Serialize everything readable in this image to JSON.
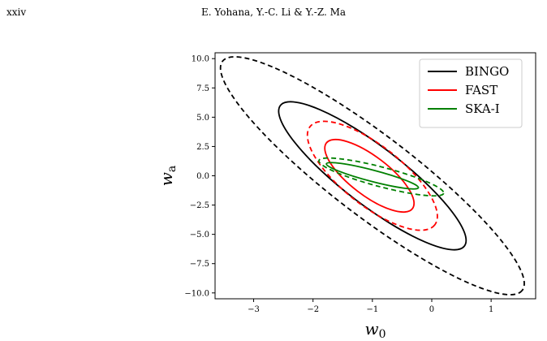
{
  "header": {
    "page_label": "xxiv",
    "authors": "E. Yohana, Y.-C. Li & Y.-Z. Ma"
  },
  "chart_data": {
    "type": "contour",
    "xlabel": "w",
    "xlabel_sub": "0",
    "ylabel": "w",
    "ylabel_sub": "a",
    "xlim": [
      -3.65,
      1.75
    ],
    "ylim": [
      -10.5,
      10.5
    ],
    "x_ticks": [
      -3,
      -2,
      -1,
      0,
      1
    ],
    "x_tick_labels": [
      "−3",
      "−2",
      "−1",
      "0",
      "1"
    ],
    "y_ticks": [
      10.0,
      7.5,
      5.0,
      2.5,
      0.0,
      -2.5,
      -5.0,
      -7.5,
      -10.0
    ],
    "y_tick_labels": [
      "10.0",
      "7.5",
      "5.0",
      "2.5",
      "0.0",
      "−2.5",
      "−5.0",
      "−7.5",
      "−10.0"
    ],
    "legend_position": "top-right",
    "series": [
      {
        "name": "BINGO",
        "color": "#000000",
        "contours": [
          {
            "level": "inner",
            "style": "solid",
            "center": [
              -1.0,
              0.0
            ],
            "end1": [
              -2.55,
              6.0
            ],
            "end2": [
              0.55,
              -6.0
            ],
            "half_width": 0.85
          },
          {
            "level": "outer",
            "style": "dashed",
            "center": [
              -1.0,
              0.0
            ],
            "end1": [
              -3.55,
              9.75
            ],
            "end2": [
              1.5,
              -9.8
            ],
            "half_width": 1.2
          }
        ]
      },
      {
        "name": "FAST",
        "color": "#ff0000",
        "contours": [
          {
            "level": "inner",
            "style": "solid",
            "center": [
              -1.05,
              0.0
            ],
            "end1": [
              -1.8,
              3.0
            ],
            "end2": [
              -0.35,
              -2.6
            ],
            "half_width": 0.55
          },
          {
            "level": "outer",
            "style": "dashed",
            "center": [
              -1.0,
              0.0
            ],
            "end1": [
              -2.05,
              4.3
            ],
            "end2": [
              0.05,
              -4.1
            ],
            "half_width": 0.85
          }
        ]
      },
      {
        "name": "SKA-I",
        "color": "#008000",
        "contours": [
          {
            "level": "inner",
            "style": "solid",
            "center": [
              -1.0,
              0.0
            ],
            "end1": [
              -1.9,
              1.05
            ],
            "end2": [
              -0.35,
              -1.0
            ],
            "half_width": 0.3
          },
          {
            "level": "outer",
            "style": "dashed",
            "center": [
              -0.85,
              -0.1
            ],
            "end1": [
              -2.05,
              1.35
            ],
            "end2": [
              0.05,
              -1.45
            ],
            "half_width": 0.6
          }
        ]
      }
    ]
  }
}
